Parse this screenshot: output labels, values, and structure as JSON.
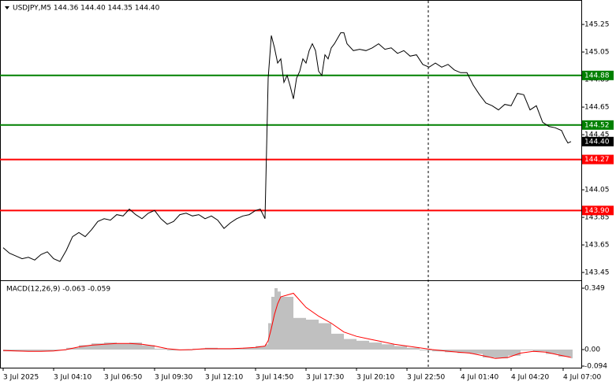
{
  "chart_data": [
    {
      "type": "line",
      "title": "USDJPY,M5  144.36 144.40 144.35 144.40",
      "color": "#000000",
      "xlim": [
        -2,
        366.5
      ],
      "ylim": [
        143.399,
        145.416
      ],
      "yticks": [
        145.25,
        145.05,
        144.85,
        144.65,
        144.45,
        144.25,
        144.05,
        143.85,
        143.65,
        143.45
      ],
      "x": [
        0,
        4,
        8,
        12,
        16,
        20,
        24,
        28,
        32,
        36,
        40,
        44,
        48,
        52,
        56,
        60,
        64,
        68,
        72,
        76,
        80,
        84,
        88,
        92,
        96,
        100,
        104,
        108,
        112,
        116,
        120,
        124,
        128,
        132,
        136,
        140,
        144,
        148,
        152,
        156,
        160,
        163,
        166,
        168,
        170,
        172,
        174,
        176,
        178,
        180,
        182,
        184,
        186,
        188,
        190,
        192,
        194,
        196,
        198,
        200,
        202,
        204,
        206,
        208,
        210,
        212,
        214,
        216,
        218,
        222,
        226,
        230,
        234,
        238,
        242,
        246,
        250,
        254,
        258,
        262,
        266,
        270,
        274,
        278,
        282,
        286,
        290,
        294,
        298,
        302,
        306,
        310,
        314,
        318,
        322,
        326,
        330,
        334,
        338,
        342,
        346,
        350,
        354,
        356,
        358,
        360
      ],
      "values": [
        143.63,
        143.59,
        143.57,
        143.55,
        143.56,
        143.54,
        143.58,
        143.6,
        143.55,
        143.53,
        143.61,
        143.71,
        143.74,
        143.71,
        143.76,
        143.82,
        143.84,
        143.83,
        143.87,
        143.86,
        143.91,
        143.87,
        143.84,
        143.88,
        143.9,
        143.84,
        143.8,
        143.82,
        143.87,
        143.88,
        143.86,
        143.87,
        143.84,
        143.86,
        143.83,
        143.77,
        143.81,
        143.84,
        143.86,
        143.87,
        143.9,
        143.91,
        143.84,
        144.86,
        145.17,
        145.08,
        144.97,
        145.0,
        144.83,
        144.88,
        144.8,
        144.71,
        144.86,
        144.91,
        145.0,
        144.97,
        145.06,
        145.11,
        145.06,
        144.91,
        144.88,
        145.03,
        145.0,
        145.08,
        145.11,
        145.15,
        145.19,
        145.19,
        145.11,
        145.06,
        145.07,
        145.06,
        145.08,
        145.11,
        145.07,
        145.08,
        145.04,
        145.06,
        145.02,
        145.03,
        144.96,
        144.94,
        144.97,
        144.94,
        144.96,
        144.92,
        144.9,
        144.9,
        144.81,
        144.74,
        144.68,
        144.66,
        144.63,
        144.67,
        144.66,
        144.75,
        144.74,
        144.63,
        144.66,
        144.54,
        144.51,
        144.5,
        144.48,
        144.43,
        144.39,
        144.4
      ],
      "levels": [
        {
          "value": 144.88,
          "label": "144.88",
          "color": "#008000"
        },
        {
          "value": 144.52,
          "label": "144.52",
          "color": "#008000"
        },
        {
          "value": 144.27,
          "label": "144.27",
          "color": "#ff0000"
        },
        {
          "value": 143.9,
          "label": "143.90",
          "color": "#ff0000"
        }
      ],
      "price_label": {
        "value": 144.4,
        "label": "144.40",
        "color": "#000000"
      }
    },
    {
      "type": "macd",
      "title": "MACD(12,26,9) -0.063 -0.059",
      "xlim": [
        -2,
        366.5
      ],
      "ylim": [
        -0.103,
        0.385
      ],
      "yticks": [
        0.349,
        {
          "value": 0,
          "label": "0.00"
        },
        -0.094
      ],
      "xticks": [
        {
          "value": 0,
          "label": "3 Jul 2025"
        },
        {
          "value": 32,
          "label": "3 Jul 04:10"
        },
        {
          "value": 64,
          "label": "3 Jul 06:50"
        },
        {
          "value": 96,
          "label": "3 Jul 09:30"
        },
        {
          "value": 128,
          "label": "3 Jul 12:10"
        },
        {
          "value": 160,
          "label": "3 Jul 14:50"
        },
        {
          "value": 192,
          "label": "3 Jul 17:30"
        },
        {
          "value": 224,
          "label": "3 Jul 20:10"
        },
        {
          "value": 256,
          "label": "3 Jul 22:50"
        },
        {
          "value": 290,
          "label": "4 Jul 01:40"
        },
        {
          "value": 322,
          "label": "4 Jul 04:20"
        },
        {
          "value": 355,
          "label": "4 Jul 07:00"
        }
      ],
      "x": [
        0,
        8,
        16,
        24,
        32,
        40,
        48,
        56,
        64,
        72,
        80,
        88,
        96,
        104,
        112,
        120,
        128,
        136,
        144,
        152,
        160,
        166,
        168,
        170,
        172,
        174,
        176,
        184,
        192,
        200,
        208,
        216,
        224,
        232,
        240,
        248,
        256,
        264,
        272,
        280,
        288,
        296,
        304,
        312,
        320,
        328,
        336,
        344,
        352,
        360
      ],
      "histogram": {
        "color": "#c0c0c0",
        "values": [
          -0.01,
          -0.01,
          -0.01,
          -0.01,
          -0.005,
          0.01,
          0.025,
          0.035,
          0.04,
          0.035,
          0.04,
          0.025,
          0.005,
          -0.005,
          -0.005,
          0.005,
          0.01,
          0.005,
          0.005,
          0.01,
          0.02,
          0.03,
          0.15,
          0.3,
          0.349,
          0.33,
          0.3,
          0.18,
          0.17,
          0.15,
          0.09,
          0.06,
          0.05,
          0.04,
          0.03,
          0.02,
          0.01,
          -0.005,
          -0.01,
          -0.015,
          -0.02,
          -0.025,
          -0.045,
          -0.05,
          -0.035,
          -0.005,
          -0.01,
          -0.025,
          -0.04,
          -0.05
        ]
      },
      "signal": {
        "color": "#ff0000",
        "values": [
          -0.005,
          -0.008,
          -0.01,
          -0.01,
          -0.008,
          0.0,
          0.015,
          0.025,
          0.03,
          0.035,
          0.035,
          0.03,
          0.02,
          0.005,
          -0.002,
          0.0,
          0.005,
          0.005,
          0.005,
          0.008,
          0.012,
          0.02,
          0.05,
          0.12,
          0.2,
          0.26,
          0.3,
          0.32,
          0.24,
          0.19,
          0.15,
          0.1,
          0.075,
          0.06,
          0.045,
          0.03,
          0.02,
          0.01,
          0.0,
          -0.008,
          -0.015,
          -0.02,
          -0.035,
          -0.05,
          -0.045,
          -0.02,
          -0.01,
          -0.015,
          -0.03,
          -0.045
        ]
      }
    }
  ]
}
